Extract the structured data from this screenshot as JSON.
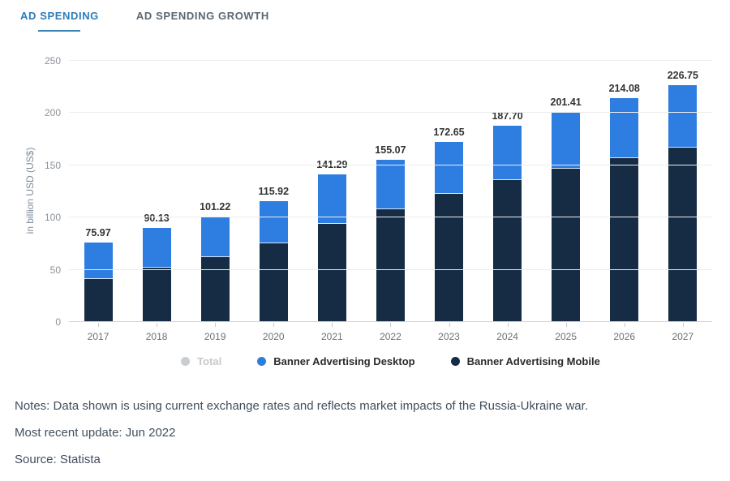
{
  "tabs": [
    {
      "label": "AD SPENDING",
      "active": true
    },
    {
      "label": "AD SPENDING GROWTH",
      "active": false
    }
  ],
  "chart_data": {
    "type": "bar",
    "stacked": true,
    "categories": [
      "2017",
      "2018",
      "2019",
      "2020",
      "2021",
      "2022",
      "2023",
      "2024",
      "2025",
      "2026",
      "2027"
    ],
    "series": [
      {
        "name": "Banner Advertising Mobile",
        "color": "#152c44",
        "values": [
          41.0,
          52.0,
          62.0,
          75.0,
          94.0,
          108.0,
          123.0,
          136.0,
          147.0,
          157.0,
          167.0
        ]
      },
      {
        "name": "Banner Advertising Desktop",
        "color": "#2e7de0",
        "values": [
          34.97,
          38.13,
          39.22,
          40.92,
          47.29,
          47.07,
          49.65,
          51.7,
          54.41,
          57.08,
          59.75
        ]
      }
    ],
    "totals": [
      "75.97",
      "90.13",
      "101.22",
      "115.92",
      "141.29",
      "155.07",
      "172.65",
      "187.70",
      "201.41",
      "214.08",
      "226.75"
    ],
    "title": "",
    "xlabel": "",
    "ylabel": "in billion USD (US$)",
    "ylim": [
      0,
      250
    ],
    "yticks": [
      0,
      50,
      100,
      150,
      200,
      250
    ],
    "grid": true,
    "legend_position": "bottom",
    "legend": [
      {
        "label": "Total",
        "color": "#c9cdd1",
        "disabled": true
      },
      {
        "label": "Banner Advertising Desktop",
        "color": "#2e7de0",
        "disabled": false
      },
      {
        "label": "Banner Advertising Mobile",
        "color": "#152c44",
        "disabled": false
      }
    ]
  },
  "notes": {
    "notes_line": "Notes: Data shown is using current exchange rates and reflects market impacts of the Russia-Ukraine war.",
    "update_line": "Most recent update: Jun 2022",
    "source_line": "Source: Statista"
  }
}
